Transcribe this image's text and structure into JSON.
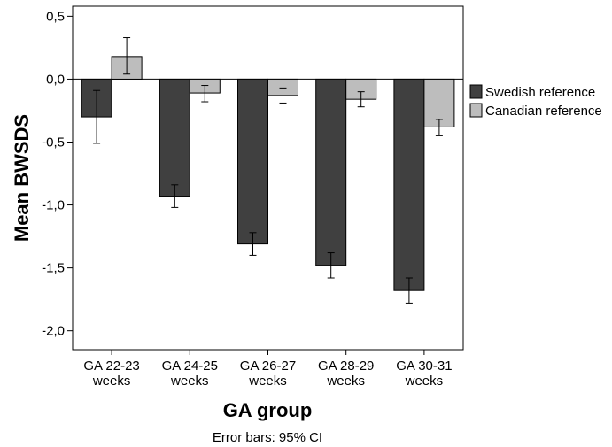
{
  "chart_data": {
    "type": "bar",
    "categories": [
      [
        "GA 22-23",
        "weeks"
      ],
      [
        "GA 24-25",
        "weeks"
      ],
      [
        "GA 26-27",
        "weeks"
      ],
      [
        "GA 28-29",
        "weeks"
      ],
      [
        "GA 30-31",
        "weeks"
      ]
    ],
    "series": [
      {
        "name": "Swedish reference",
        "color": "#404040",
        "values": [
          -0.3,
          -0.93,
          -1.31,
          -1.48,
          -1.68
        ],
        "ci_low": [
          -0.51,
          -1.02,
          -1.4,
          -1.58,
          -1.78
        ],
        "ci_high": [
          -0.09,
          -0.84,
          -1.22,
          -1.38,
          -1.58
        ]
      },
      {
        "name": "Canadian reference",
        "color": "#bdbdbd",
        "values": [
          0.18,
          -0.11,
          -0.13,
          -0.16,
          -0.38
        ],
        "ci_low": [
          0.04,
          -0.18,
          -0.19,
          -0.22,
          -0.45
        ],
        "ci_high": [
          0.33,
          -0.05,
          -0.07,
          -0.1,
          -0.32
        ]
      }
    ],
    "yticks": [
      0.5,
      0.0,
      -0.5,
      -1.0,
      -1.5,
      -2.0
    ],
    "ytick_labels": [
      "0,5",
      "0,0",
      "-0,5",
      "-1,0",
      "-1,5",
      "-2,0"
    ],
    "ylim": [
      -2.15,
      0.58
    ],
    "xlabel": "GA group",
    "ylabel": "Mean BWSDS",
    "legend_position": "right",
    "caption": "Error bars: 95% CI"
  }
}
